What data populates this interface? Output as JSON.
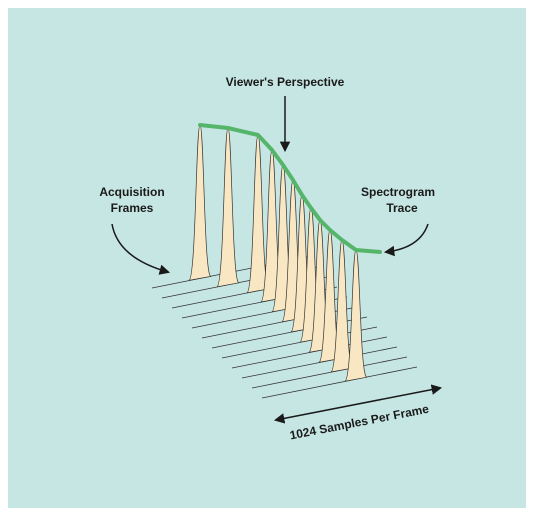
{
  "labels": {
    "viewer": "Viewer's Perspective",
    "acquisition": [
      "Acquisition",
      "Frames"
    ],
    "spectrogram": [
      "Spectrogram",
      "Trace"
    ],
    "samples": "1024 Samples Per Frame"
  }
}
